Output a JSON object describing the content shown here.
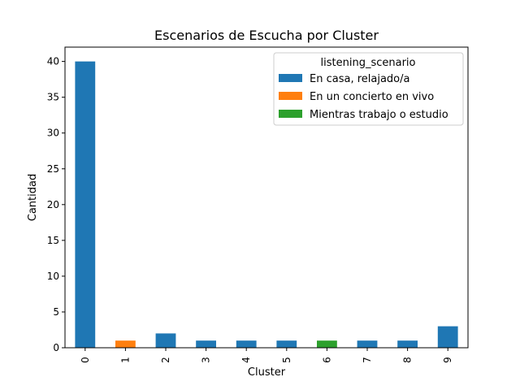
{
  "chart_data": {
    "type": "bar",
    "stacked": true,
    "title": "Escenarios de Escucha por Cluster",
    "xlabel": "Cluster",
    "ylabel": "Cantidad",
    "categories": [
      "0",
      "1",
      "2",
      "3",
      "4",
      "5",
      "6",
      "7",
      "8",
      "9"
    ],
    "ylim": [
      0,
      42
    ],
    "yticks": [
      0,
      5,
      10,
      15,
      20,
      25,
      30,
      35,
      40
    ],
    "legend": {
      "title": "listening_scenario",
      "placement": "top-right"
    },
    "series": [
      {
        "name": "En casa, relajado/a",
        "color": "#1f77b4",
        "values": [
          40,
          0,
          2,
          1,
          1,
          1,
          0,
          1,
          1,
          3
        ]
      },
      {
        "name": "En un concierto en vivo",
        "color": "#ff7f0e",
        "values": [
          0,
          1,
          0,
          0,
          0,
          0,
          0,
          0,
          0,
          0
        ]
      },
      {
        "name": "Mientras trabajo o estudio",
        "color": "#2ca02c",
        "values": [
          0,
          0,
          0,
          0,
          0,
          0,
          1,
          0,
          0,
          0
        ]
      }
    ]
  }
}
